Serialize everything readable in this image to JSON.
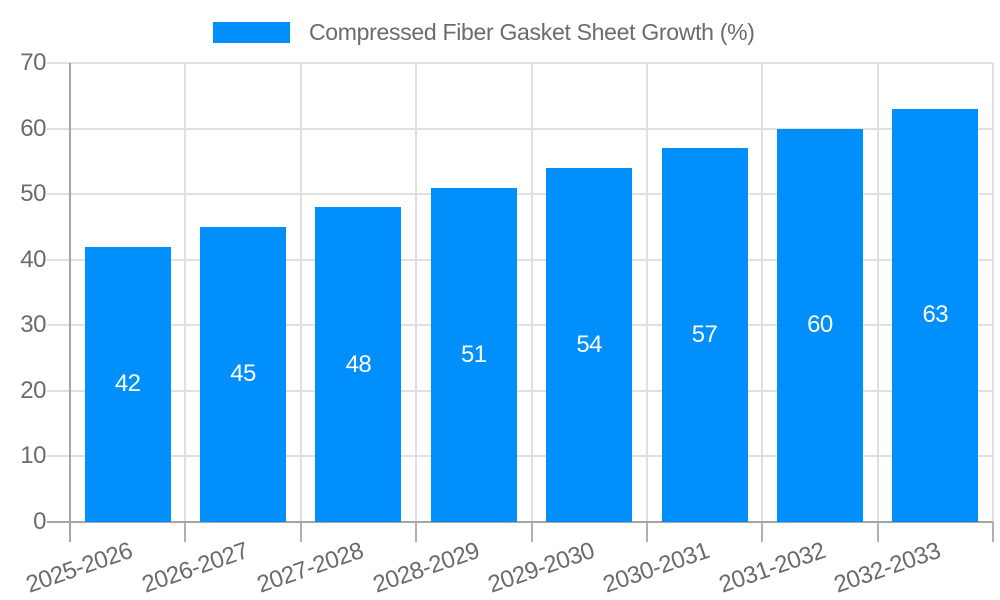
{
  "colors": {
    "bar": "#008FFB",
    "grid": "#e0e0e0",
    "axis": "#a5a5a5",
    "tick": "#b0b0b0",
    "label_text": "#6b6b6b",
    "value_text": "#ffffff",
    "background": "#ffffff"
  },
  "legend": {
    "label": "Compressed Fiber Gasket Sheet Growth (%)",
    "swatch_color": "#008FFB",
    "position": "top"
  },
  "chart_data": {
    "type": "bar",
    "title": "",
    "xlabel": "",
    "ylabel": "",
    "categories": [
      "2025-2026",
      "2026-2027",
      "2027-2028",
      "2028-2029",
      "2029-2030",
      "2030-2031",
      "2031-2032",
      "2032-2033"
    ],
    "series": [
      {
        "name": "Compressed Fiber Gasket Sheet Growth (%)",
        "values": [
          42,
          45,
          48,
          51,
          54,
          57,
          60,
          63
        ]
      }
    ],
    "value_labels": [
      42,
      45,
      48,
      51,
      54,
      57,
      60,
      63
    ],
    "ylim": [
      0,
      70
    ],
    "yticks": [
      0,
      10,
      20,
      30,
      40,
      50,
      60,
      70
    ],
    "grid": "on",
    "legend_position": "top",
    "x_tick_label_rotation_deg": -19
  }
}
